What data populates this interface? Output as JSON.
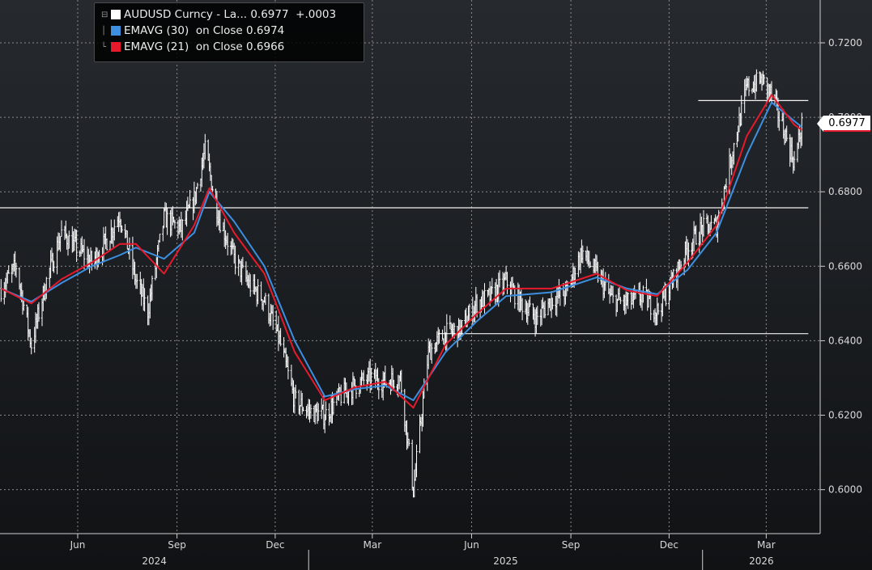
{
  "legend": {
    "items": [
      {
        "color": "#ffffff",
        "text": "AUDUSD Curncy - La... 0.6977  +.0003"
      },
      {
        "color": "#3e8fe0",
        "text": "EMAVG (30)  on Close 0.6974"
      },
      {
        "color": "#e8192c",
        "text": "EMAVG (21)  on Close 0.6966"
      }
    ]
  },
  "last_value_label": "0.6977",
  "chart_data": {
    "type": "ohlc-line",
    "x_ticks": [
      "Jun",
      "Sep",
      "Dec",
      "Mar",
      "Jun",
      "Sep",
      "Dec",
      "Mar"
    ],
    "x_tick_dates": [
      "2024-06-01",
      "2024-09-01",
      "2024-12-01",
      "2025-03-01",
      "2025-06-01",
      "2025-09-01",
      "2025-12-01",
      "2026-03-01"
    ],
    "years": [
      "2024",
      "2025",
      "2026"
    ],
    "y_ticks": [
      "0.6000",
      "0.6200",
      "0.6400",
      "0.6600",
      "0.6800",
      "0.7000",
      "0.7200"
    ],
    "y_tick_values": [
      0.6,
      0.62,
      0.64,
      0.66,
      0.68,
      0.7,
      0.72
    ],
    "ylim": [
      0.5882,
      0.7315
    ],
    "xlim": [
      "2024-03-21",
      "2026-04-20"
    ],
    "grid": true,
    "legend_position": "top-left",
    "horizontal_lines": [
      {
        "value": 0.6757,
        "from": "2024-03-21",
        "to": "2026-04-09"
      },
      {
        "value": 0.6419,
        "from": "2025-05-01",
        "to": "2026-04-09"
      },
      {
        "value": 0.7045,
        "from": "2025-12-28",
        "to": "2026-04-09"
      }
    ],
    "series": [
      {
        "name": "AUDUSD Curncy",
        "style": "ohlc-bars",
        "color": "#ffffff",
        "points": [
          [
            "2024-03-22",
            0.654
          ],
          [
            "2024-04-05",
            0.66
          ],
          [
            "2024-04-19",
            0.639
          ],
          [
            "2024-05-03",
            0.656
          ],
          [
            "2024-05-17",
            0.669
          ],
          [
            "2024-05-31",
            0.665
          ],
          [
            "2024-06-14",
            0.661
          ],
          [
            "2024-06-28",
            0.667
          ],
          [
            "2024-07-10",
            0.674
          ],
          [
            "2024-07-25",
            0.656
          ],
          [
            "2024-08-05",
            0.648
          ],
          [
            "2024-08-20",
            0.673
          ],
          [
            "2024-09-05",
            0.67
          ],
          [
            "2024-09-17",
            0.678
          ],
          [
            "2024-09-27",
            0.691
          ],
          [
            "2024-10-10",
            0.673
          ],
          [
            "2024-10-24",
            0.662
          ],
          [
            "2024-11-07",
            0.655
          ],
          [
            "2024-11-21",
            0.651
          ],
          [
            "2024-12-05",
            0.64
          ],
          [
            "2024-12-19",
            0.624
          ],
          [
            "2025-01-02",
            0.621
          ],
          [
            "2025-01-16",
            0.62
          ],
          [
            "2025-01-30",
            0.625
          ],
          [
            "2025-02-13",
            0.628
          ],
          [
            "2025-02-27",
            0.63
          ],
          [
            "2025-03-13",
            0.629
          ],
          [
            "2025-03-27",
            0.63
          ],
          [
            "2025-04-08",
            0.6
          ],
          [
            "2025-04-22",
            0.637
          ],
          [
            "2025-05-08",
            0.642
          ],
          [
            "2025-05-22",
            0.643
          ],
          [
            "2025-06-05",
            0.65
          ],
          [
            "2025-06-19",
            0.652
          ],
          [
            "2025-07-03",
            0.656
          ],
          [
            "2025-07-17",
            0.65
          ],
          [
            "2025-07-31",
            0.646
          ],
          [
            "2025-08-14",
            0.651
          ],
          [
            "2025-08-28",
            0.653
          ],
          [
            "2025-09-11",
            0.664
          ],
          [
            "2025-09-25",
            0.658
          ],
          [
            "2025-10-09",
            0.651
          ],
          [
            "2025-10-23",
            0.65
          ],
          [
            "2025-11-06",
            0.652
          ],
          [
            "2025-11-20",
            0.648
          ],
          [
            "2025-12-04",
            0.656
          ],
          [
            "2025-12-18",
            0.665
          ],
          [
            "2025-12-31",
            0.67
          ],
          [
            "2026-01-14",
            0.671
          ],
          [
            "2026-01-28",
            0.69
          ],
          [
            "2026-02-11",
            0.708
          ],
          [
            "2026-02-25",
            0.71
          ],
          [
            "2026-03-06",
            0.706
          ],
          [
            "2026-03-18",
            0.696
          ],
          [
            "2026-03-27",
            0.688
          ],
          [
            "2026-04-03",
            0.6977
          ]
        ]
      },
      {
        "name": "EMAVG (30)",
        "style": "line",
        "color": "#3e8fe0",
        "points": [
          [
            "2024-03-22",
            0.654
          ],
          [
            "2024-04-19",
            0.6505
          ],
          [
            "2024-05-17",
            0.6555
          ],
          [
            "2024-06-14",
            0.66
          ],
          [
            "2024-07-10",
            0.663
          ],
          [
            "2024-07-25",
            0.665
          ],
          [
            "2024-08-20",
            0.662
          ],
          [
            "2024-09-17",
            0.669
          ],
          [
            "2024-10-01",
            0.68
          ],
          [
            "2024-10-24",
            0.672
          ],
          [
            "2024-11-21",
            0.66
          ],
          [
            "2024-12-19",
            0.64
          ],
          [
            "2025-01-16",
            0.625
          ],
          [
            "2025-02-13",
            0.627
          ],
          [
            "2025-03-13",
            0.628
          ],
          [
            "2025-04-08",
            0.624
          ],
          [
            "2025-05-08",
            0.637
          ],
          [
            "2025-06-05",
            0.645
          ],
          [
            "2025-07-03",
            0.652
          ],
          [
            "2025-08-14",
            0.653
          ],
          [
            "2025-09-25",
            0.657
          ],
          [
            "2025-10-23",
            0.654
          ],
          [
            "2025-11-20",
            0.6525
          ],
          [
            "2025-12-18",
            0.659
          ],
          [
            "2026-01-14",
            0.669
          ],
          [
            "2026-02-11",
            0.69
          ],
          [
            "2026-03-06",
            0.704
          ],
          [
            "2026-03-27",
            0.699
          ],
          [
            "2026-04-03",
            0.6974
          ]
        ]
      },
      {
        "name": "EMAVG (21)",
        "style": "line",
        "color": "#e8192c",
        "points": [
          [
            "2024-03-22",
            0.654
          ],
          [
            "2024-04-19",
            0.65
          ],
          [
            "2024-05-17",
            0.6565
          ],
          [
            "2024-06-14",
            0.661
          ],
          [
            "2024-07-10",
            0.666
          ],
          [
            "2024-07-25",
            0.666
          ],
          [
            "2024-08-20",
            0.658
          ],
          [
            "2024-09-17",
            0.671
          ],
          [
            "2024-10-01",
            0.681
          ],
          [
            "2024-10-24",
            0.669
          ],
          [
            "2024-11-21",
            0.658
          ],
          [
            "2024-12-19",
            0.637
          ],
          [
            "2025-01-16",
            0.624
          ],
          [
            "2025-02-13",
            0.6275
          ],
          [
            "2025-03-13",
            0.629
          ],
          [
            "2025-04-08",
            0.622
          ],
          [
            "2025-05-08",
            0.639
          ],
          [
            "2025-06-05",
            0.647
          ],
          [
            "2025-07-03",
            0.654
          ],
          [
            "2025-08-14",
            0.654
          ],
          [
            "2025-09-25",
            0.658
          ],
          [
            "2025-10-23",
            0.6535
          ],
          [
            "2025-11-20",
            0.652
          ],
          [
            "2025-12-18",
            0.661
          ],
          [
            "2026-01-14",
            0.671
          ],
          [
            "2026-02-11",
            0.695
          ],
          [
            "2026-03-06",
            0.706
          ],
          [
            "2026-03-27",
            0.698
          ],
          [
            "2026-04-03",
            0.6966
          ]
        ]
      }
    ]
  }
}
